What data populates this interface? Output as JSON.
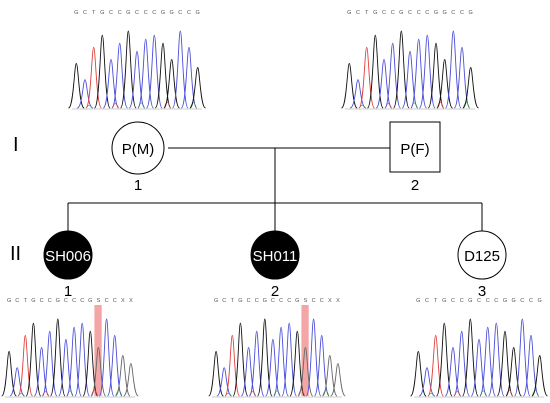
{
  "generations": [
    {
      "label": "I"
    },
    {
      "label": "II"
    }
  ],
  "individuals": [
    {
      "id": "I-1",
      "label": "P(M)",
      "number": "1",
      "shape": "circle",
      "affected": false,
      "chromatogram": "ref"
    },
    {
      "id": "I-2",
      "label": "P(F)",
      "number": "2",
      "shape": "square",
      "affected": false,
      "chromatogram": "ref"
    },
    {
      "id": "II-1",
      "label": "SH006",
      "number": "1",
      "shape": "circle",
      "affected": true,
      "chromatogram": "variant"
    },
    {
      "id": "II-2",
      "label": "SH011",
      "number": "2",
      "shape": "circle",
      "affected": true,
      "chromatogram": "variant"
    },
    {
      "id": "II-3",
      "label": "D125",
      "number": "3",
      "shape": "circle",
      "affected": false,
      "chromatogram": "ref"
    }
  ],
  "chromatograms": {
    "ref": {
      "bases": [
        "G",
        "C",
        "T",
        "G",
        "C",
        "C",
        "G",
        "C",
        "C",
        "C",
        "G",
        "G",
        "C",
        "C",
        "G"
      ],
      "highlight": null
    },
    "variant": {
      "bases": [
        "G",
        "C",
        "T",
        "G",
        "C",
        "C",
        "G",
        "C",
        "C",
        "C",
        "G",
        "S",
        "C",
        "C",
        "X",
        "X"
      ],
      "highlight": 11
    }
  },
  "colors": {
    "line": "#000000",
    "affected_fill": "#000000",
    "unaffected_fill": "#ffffff",
    "base_A": "#2e9e3a",
    "base_C": "#4b4fd8",
    "base_G": "#111111",
    "base_T": "#e0413c",
    "highlight": "#f4a6a6"
  }
}
